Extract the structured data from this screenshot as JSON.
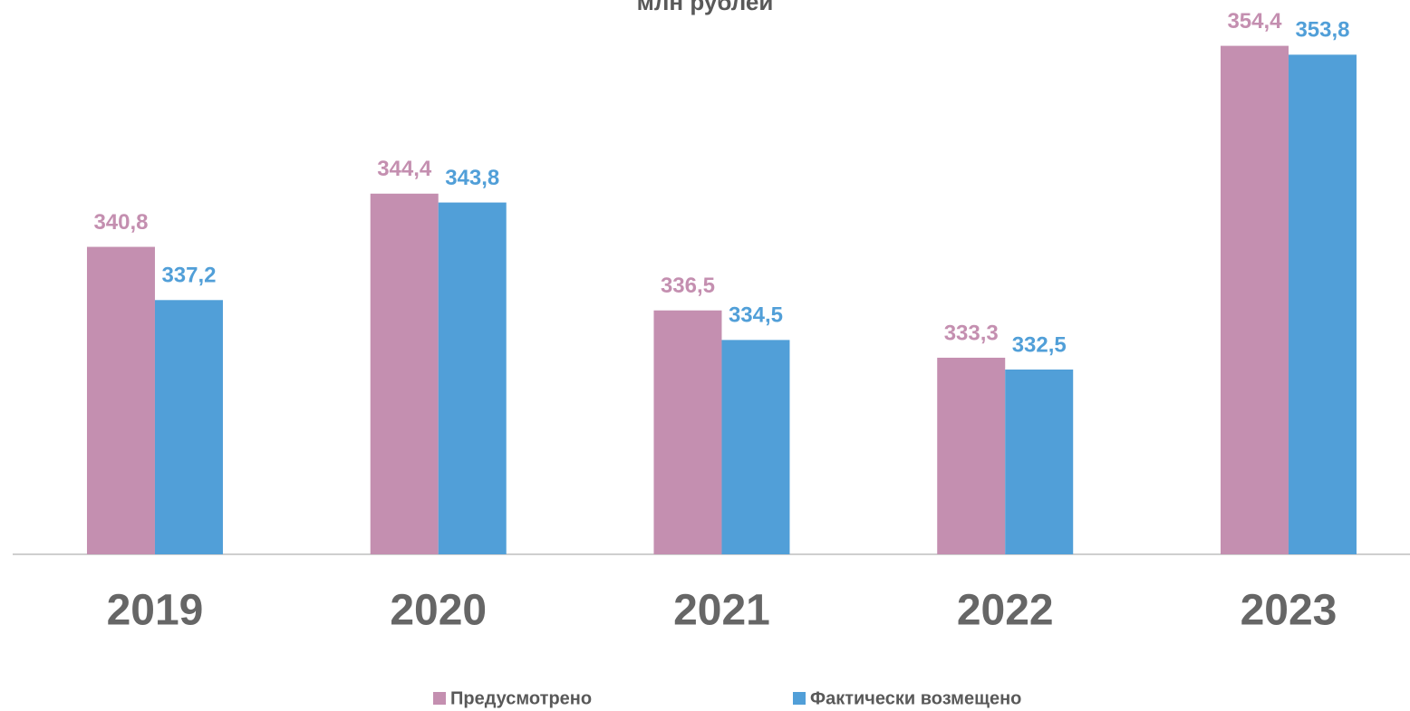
{
  "chart_data": {
    "type": "bar",
    "title": "млн рублей",
    "categories": [
      "2019",
      "2020",
      "2021",
      "2022",
      "2023"
    ],
    "series": [
      {
        "name": "Предусмотрено",
        "color": "#c48fb0",
        "values": [
          340.8,
          344.4,
          336.5,
          333.3,
          354.4
        ],
        "value_labels": [
          "340,8",
          "344,4",
          "336,5",
          "333,3",
          "354,4"
        ]
      },
      {
        "name": "Фактически возмещено",
        "color": "#519fd8",
        "values": [
          337.2,
          343.8,
          334.5,
          332.5,
          353.8
        ],
        "value_labels": [
          "337,2",
          "343,8",
          "334,5",
          "332,5",
          "353,8"
        ]
      }
    ],
    "ylim": [
      320,
      357.5
    ],
    "grid": false,
    "legend": "bottom"
  }
}
